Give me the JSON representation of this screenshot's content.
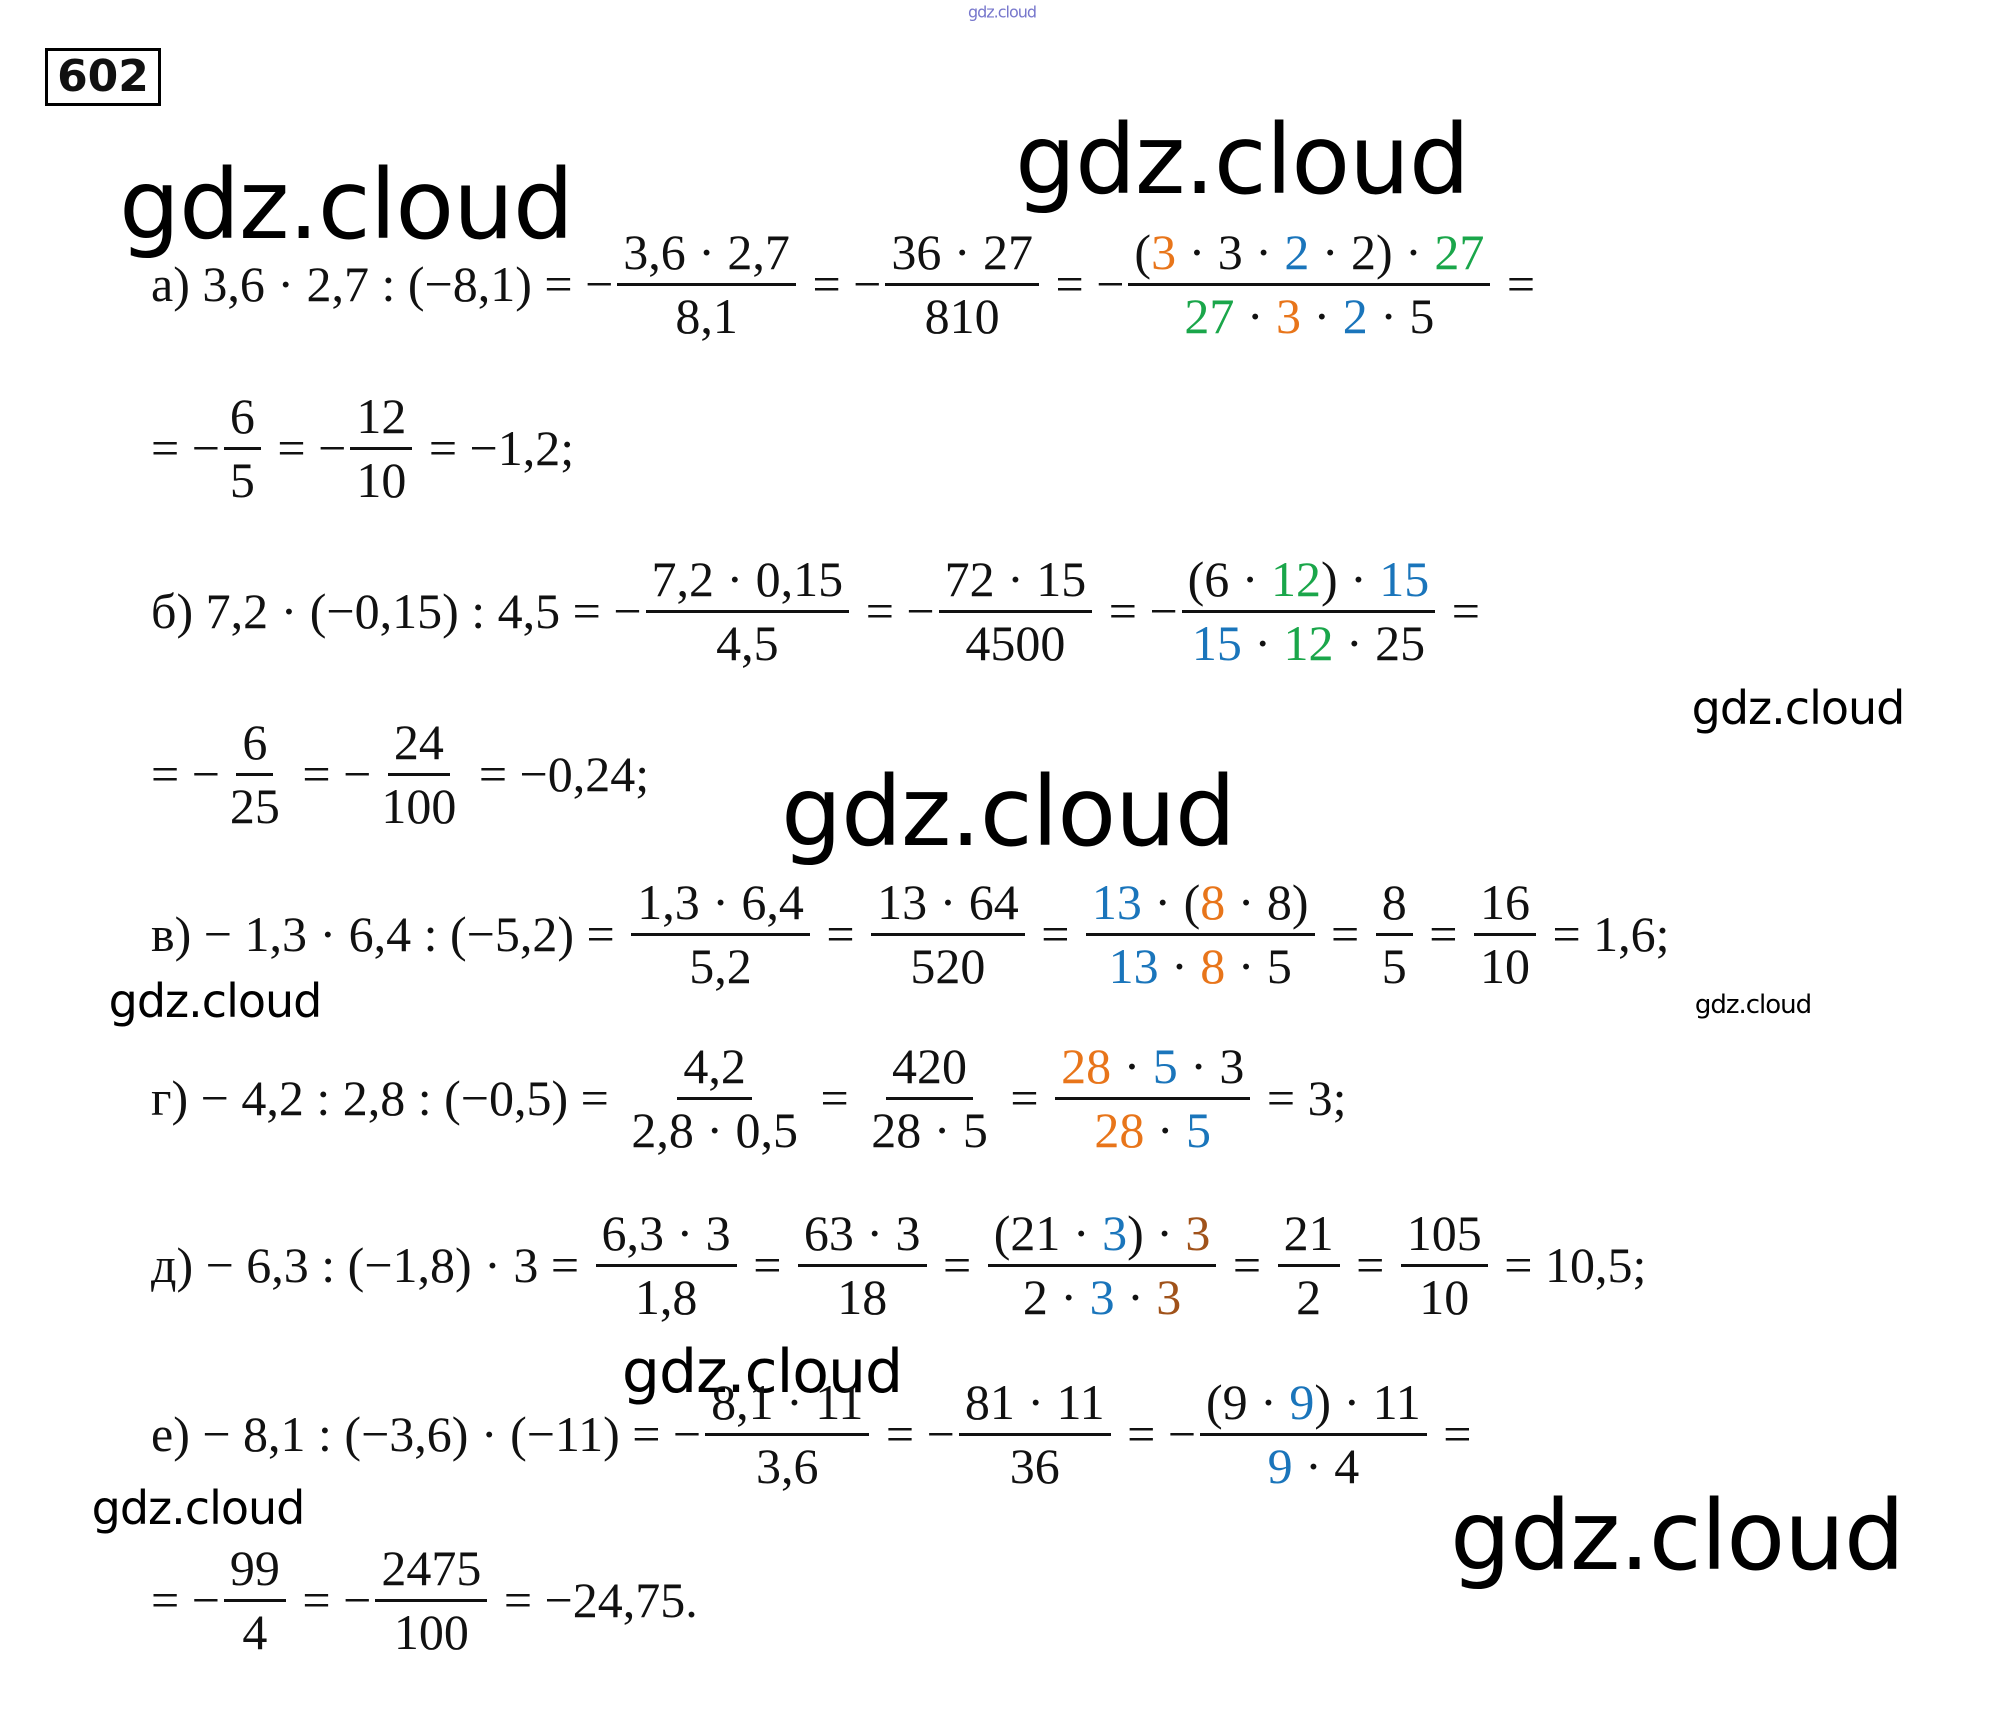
{
  "number": "602",
  "watermarks": [
    "gdz.cloud",
    "gdz.cloud",
    "gdz.cloud",
    "gdz.cloud",
    "gdz.cloud",
    "gdz.cloud",
    "gdz.cloud",
    "gdz.cloud",
    "gdz.cloud",
    "gdz.cloud"
  ],
  "lines": [
    {
      "parts": [
        "а) 3,6 · 2,7 : (−8,1) = −",
        {
          "num": [
            "3,6 · 2,7"
          ],
          "den": [
            "8,1"
          ]
        },
        " = −",
        {
          "num": [
            "36 · 27"
          ],
          "den": [
            "810"
          ]
        },
        " = −",
        {
          "num": [
            "(",
            {
              "text": "3",
              "color": "#e8751a"
            },
            " · 3 · ",
            {
              "text": "2",
              "color": "#1a75bb"
            },
            " · 2) · ",
            {
              "text": "27",
              "color": "#1aa64a"
            }
          ],
          "den": [
            {
              "text": "27",
              "color": "#1aa64a"
            },
            " · ",
            {
              "text": "3",
              "color": "#e8751a"
            },
            " · ",
            {
              "text": "2",
              "color": "#1a75bb"
            },
            " · 5"
          ]
        },
        " ="
      ]
    },
    {
      "parts": [
        "= −",
        {
          "num": [
            "6"
          ],
          "den": [
            "5"
          ]
        },
        " = −",
        {
          "num": [
            "12"
          ],
          "den": [
            "10"
          ]
        },
        " = −1,2;"
      ]
    },
    {
      "parts": [
        "б) 7,2 · (−0,15) : 4,5 = −",
        {
          "num": [
            "7,2 · 0,15"
          ],
          "den": [
            "4,5"
          ]
        },
        " = −",
        {
          "num": [
            "72 · 15"
          ],
          "den": [
            "4500"
          ]
        },
        " = −",
        {
          "num": [
            "(6 · ",
            {
              "text": "12",
              "color": "#1aa64a"
            },
            ") · ",
            {
              "text": "15",
              "color": "#1a75bb"
            }
          ],
          "den": [
            {
              "text": "15",
              "color": "#1a75bb"
            },
            " · ",
            {
              "text": "12",
              "color": "#1aa64a"
            },
            " · 25"
          ]
        },
        " ="
      ]
    },
    {
      "parts": [
        "= −",
        {
          "num": [
            "6"
          ],
          "den": [
            "25"
          ]
        },
        " = −",
        {
          "num": [
            "24"
          ],
          "den": [
            "100"
          ]
        },
        " = −0,24;"
      ]
    },
    {
      "parts": [
        "в) − 1,3 · 6,4 : (−5,2) = ",
        {
          "num": [
            "1,3 · 6,4"
          ],
          "den": [
            "5,2"
          ]
        },
        " = ",
        {
          "num": [
            "13 · 64"
          ],
          "den": [
            "520"
          ]
        },
        " = ",
        {
          "num": [
            {
              "text": "13",
              "color": "#1a75bb"
            },
            " · (",
            {
              "text": "8",
              "color": "#e8751a"
            },
            " · 8)"
          ],
          "den": [
            {
              "text": "13",
              "color": "#1a75bb"
            },
            " · ",
            {
              "text": "8",
              "color": "#e8751a"
            },
            " · 5"
          ]
        },
        " = ",
        {
          "num": [
            "8"
          ],
          "den": [
            "5"
          ]
        },
        " = ",
        {
          "num": [
            "16"
          ],
          "den": [
            "10"
          ]
        },
        " = 1,6;"
      ]
    },
    {
      "parts": [
        "г) − 4,2 : 2,8 : (−0,5) = ",
        {
          "num": [
            "4,2"
          ],
          "den": [
            "2,8 · 0,5"
          ]
        },
        " = ",
        {
          "num": [
            "420"
          ],
          "den": [
            "28 · 5"
          ]
        },
        " = ",
        {
          "num": [
            {
              "text": "28",
              "color": "#e8751a"
            },
            " · ",
            {
              "text": "5",
              "color": "#1a75bb"
            },
            " · 3"
          ],
          "den": [
            {
              "text": "28",
              "color": "#e8751a"
            },
            " · ",
            {
              "text": "5",
              "color": "#1a75bb"
            }
          ]
        },
        " = 3;"
      ]
    },
    {
      "parts": [
        "д) − 6,3 : (−1,8) · 3 = ",
        {
          "num": [
            "6,3 · 3"
          ],
          "den": [
            "1,8"
          ]
        },
        " = ",
        {
          "num": [
            "63 · 3"
          ],
          "den": [
            "18"
          ]
        },
        " = ",
        {
          "num": [
            "(21 · ",
            {
              "text": "3",
              "color": "#1a75bb"
            },
            ") · ",
            {
              "text": "3",
              "color": "#a0521a"
            }
          ],
          "den": [
            "2 · ",
            {
              "text": "3",
              "color": "#1a75bb"
            },
            " · ",
            {
              "text": "3",
              "color": "#a0521a"
            }
          ]
        },
        " = ",
        {
          "num": [
            "21"
          ],
          "den": [
            "2"
          ]
        },
        " = ",
        {
          "num": [
            "105"
          ],
          "den": [
            "10"
          ]
        },
        " = 10,5;"
      ]
    },
    {
      "parts": [
        "е) − 8,1 : (−3,6) · (−11) = −",
        {
          "num": [
            "8,1 · 11"
          ],
          "den": [
            "3,6"
          ]
        },
        " = −",
        {
          "num": [
            "81 · 11"
          ],
          "den": [
            "36"
          ]
        },
        " = −",
        {
          "num": [
            "(9 · ",
            {
              "text": "9",
              "color": "#1a75bb"
            },
            ") · 11"
          ],
          "den": [
            {
              "text": "9",
              "color": "#1a75bb"
            },
            " · 4"
          ]
        },
        " ="
      ]
    },
    {
      "parts": [
        "= −",
        {
          "num": [
            "99"
          ],
          "den": [
            "4"
          ]
        },
        " = −",
        {
          "num": [
            "2475"
          ],
          "den": [
            "100"
          ]
        },
        " = −24,75."
      ]
    }
  ]
}
